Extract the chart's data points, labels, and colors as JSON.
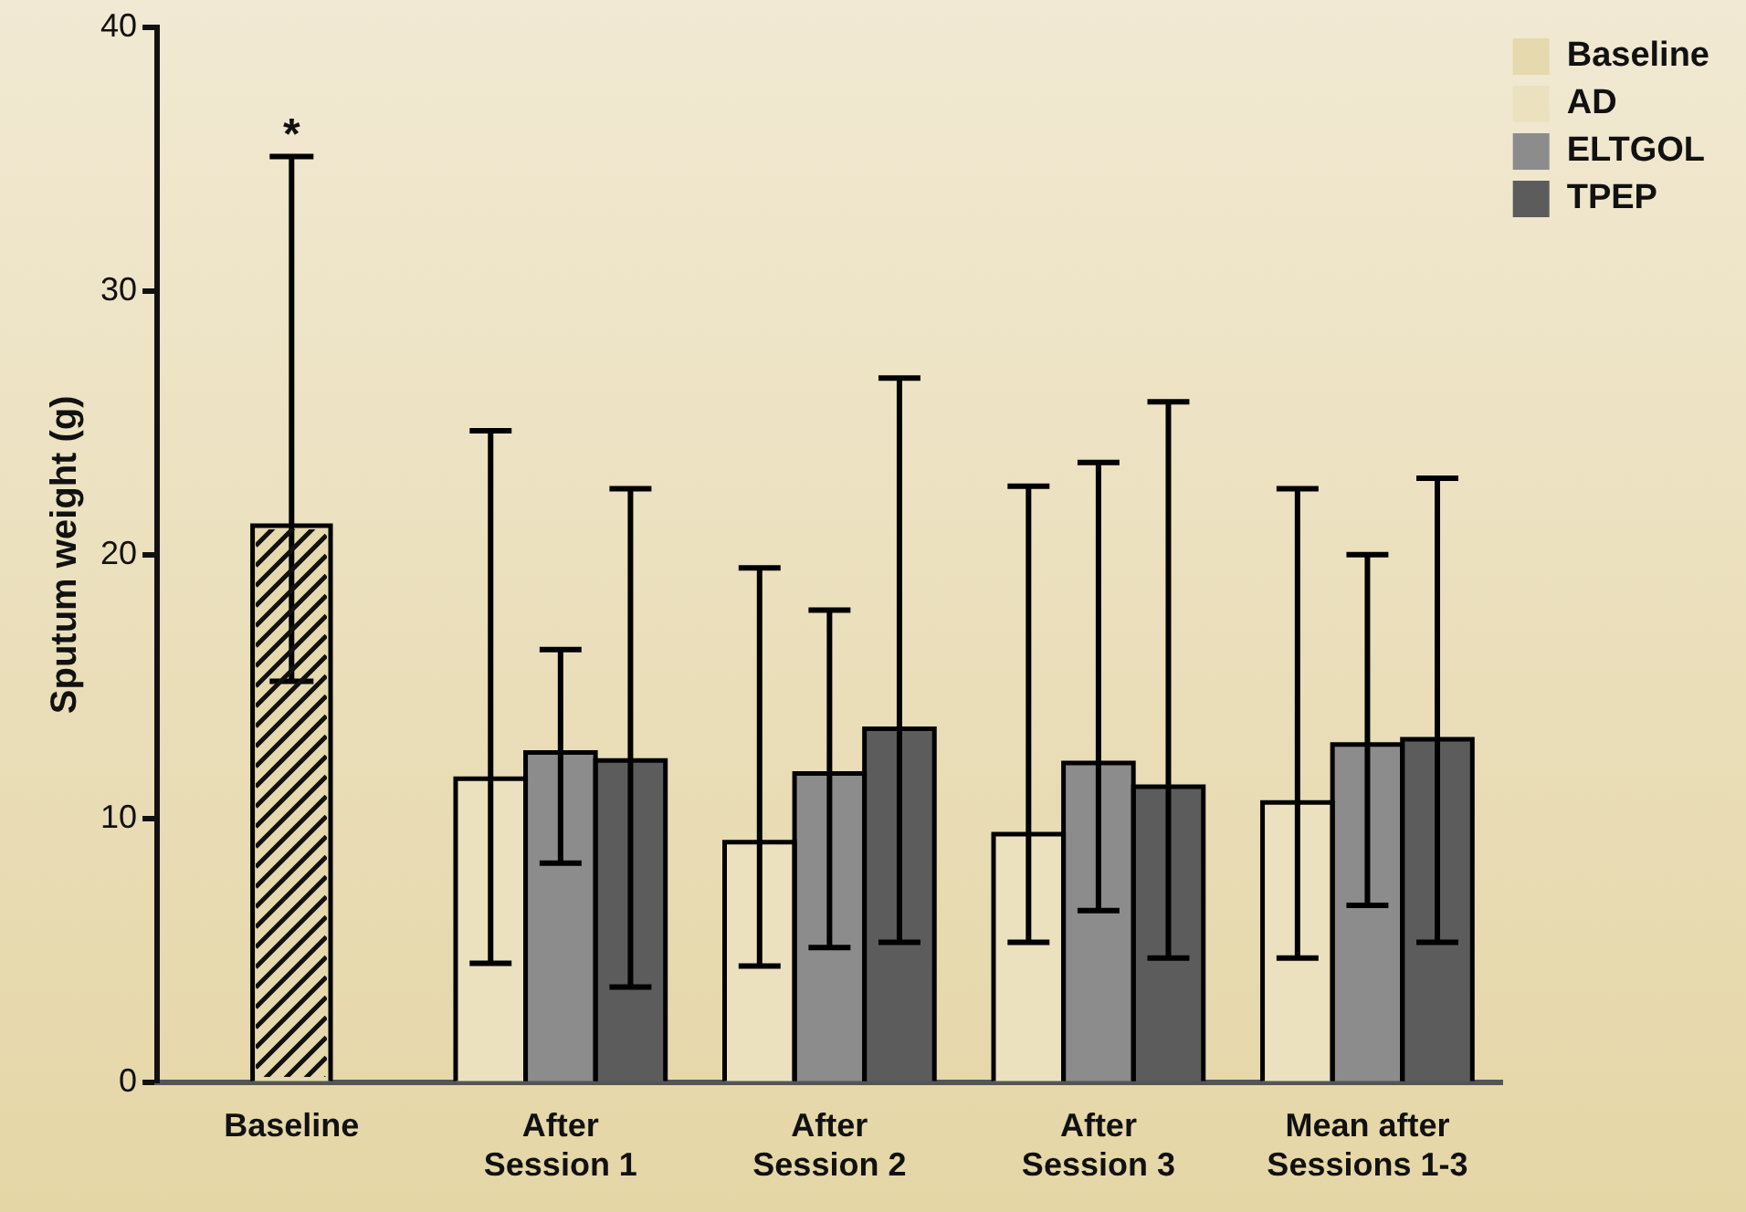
{
  "chart_data": {
    "type": "bar",
    "ylabel": "Sputum weight (g)",
    "categories": [
      "Baseline",
      "After Session 1",
      "After Session 2",
      "After Session 3",
      "Mean after Sessions 1-3"
    ],
    "series": [
      {
        "name": "Baseline",
        "color": "#e6d9ae",
        "values": [
          21.1,
          null,
          null,
          null,
          null
        ],
        "errors": [
          [
            15.2,
            35.1
          ],
          null,
          null,
          null,
          null
        ]
      },
      {
        "name": "AD",
        "color": "#ebe1bf",
        "values": [
          null,
          11.5,
          9.1,
          9.4,
          10.6
        ],
        "errors": [
          null,
          [
            4.5,
            24.7
          ],
          [
            4.4,
            19.5
          ],
          [
            5.3,
            22.6
          ],
          [
            4.7,
            22.5
          ]
        ]
      },
      {
        "name": "ELTGOL",
        "color": "#8c8c8c",
        "values": [
          null,
          12.5,
          11.7,
          12.1,
          12.8
        ],
        "errors": [
          null,
          [
            8.3,
            16.4
          ],
          [
            5.1,
            17.9
          ],
          [
            6.5,
            23.5
          ],
          [
            6.7,
            20.0
          ]
        ]
      },
      {
        "name": "TPEP",
        "color": "#5c5c5c",
        "values": [
          null,
          12.2,
          13.4,
          11.2,
          13.0
        ],
        "errors": [
          null,
          [
            3.6,
            22.5
          ],
          [
            5.3,
            26.7
          ],
          [
            4.7,
            25.8
          ],
          [
            5.3,
            22.9
          ]
        ]
      }
    ],
    "ylim": [
      0,
      40
    ],
    "yticks": [
      0,
      10,
      20,
      30,
      40
    ],
    "grid": false,
    "legend": "top right",
    "annotations": [
      "*"
    ]
  }
}
